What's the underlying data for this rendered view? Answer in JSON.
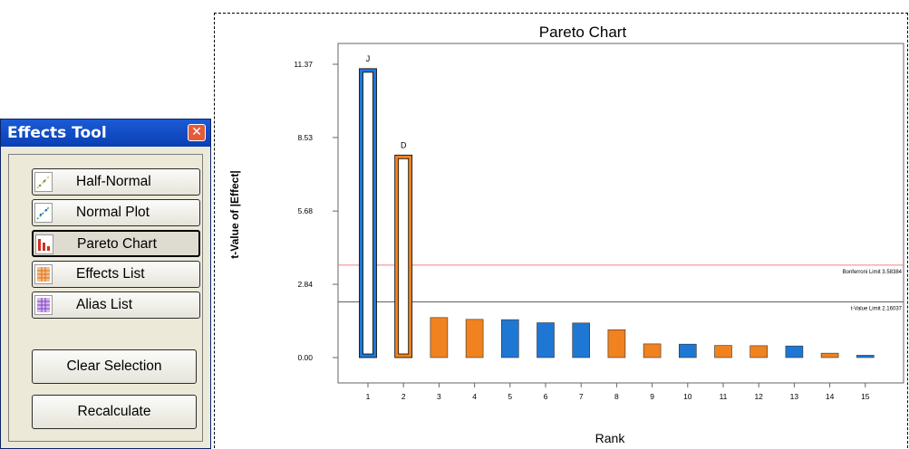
{
  "effects_tool": {
    "title": "Effects Tool",
    "close_glyph": "✕",
    "view_buttons": [
      {
        "label": "Half-Normal",
        "icon": "half-normal-icon"
      },
      {
        "label": "Normal Plot",
        "icon": "normal-plot-icon"
      },
      {
        "label": "Pareto Chart",
        "icon": "pareto-chart-icon",
        "active": true
      },
      {
        "label": "Effects List",
        "icon": "effects-list-icon"
      },
      {
        "label": "Alias List",
        "icon": "alias-list-icon"
      }
    ],
    "clear_selection_label": "Clear Selection",
    "recalculate_label": "Recalculate"
  },
  "chart_data": {
    "type": "bar",
    "title": "Pareto Chart",
    "xlabel": "Rank",
    "ylabel": "t-Value of |Effect|",
    "categories": [
      "1",
      "2",
      "3",
      "4",
      "5",
      "6",
      "7",
      "8",
      "9",
      "10",
      "11",
      "12",
      "13",
      "14",
      "15"
    ],
    "values": [
      11.2,
      7.85,
      1.55,
      1.48,
      1.47,
      1.35,
      1.34,
      1.08,
      0.53,
      0.52,
      0.47,
      0.46,
      0.45,
      0.17,
      0.09
    ],
    "bar_colors": [
      "#1f77d4",
      "#f0821f",
      "#f0821f",
      "#f0821f",
      "#1f77d4",
      "#1f77d4",
      "#1f77d4",
      "#f0821f",
      "#f0821f",
      "#1f77d4",
      "#f0821f",
      "#f0821f",
      "#1f77d4",
      "#f0821f",
      "#1f77d4"
    ],
    "outlined": [
      true,
      true,
      false,
      false,
      false,
      false,
      false,
      false,
      false,
      false,
      false,
      false,
      false,
      false,
      false
    ],
    "bar_labels": [
      "J",
      "D",
      "",
      "",
      "",
      "",
      "",
      "",
      "",
      "",
      "",
      "",
      "",
      "",
      ""
    ],
    "yticks": [
      "0.00",
      "2.84",
      "5.68",
      "8.53",
      "11.37"
    ],
    "ylim": [
      0,
      11.37
    ],
    "reference_lines": [
      {
        "label": "Bonferroni Limit 3.58384",
        "value": 3.58384,
        "color": "#f08080"
      },
      {
        "label": "t-Value Limit 2.16037",
        "value": 2.16037,
        "color": "#606060"
      }
    ],
    "colors": {
      "blue": "#1f77d4",
      "orange": "#f0821f"
    }
  }
}
